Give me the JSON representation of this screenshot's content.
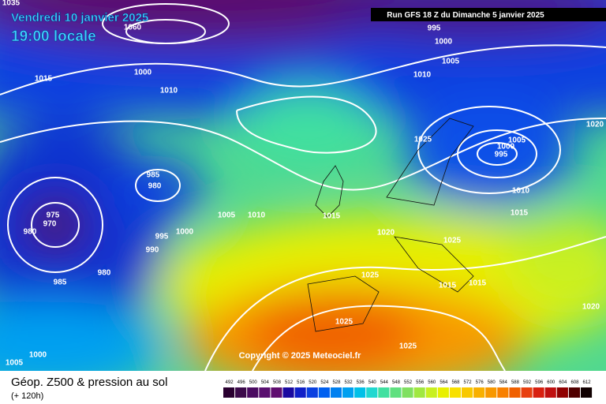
{
  "header": {
    "date": "Vendredi 10 janvier 2025",
    "time": "19:00 locale",
    "run": "Run GFS 18 Z du Dimanche 5 janvier 2025"
  },
  "copyright": "Copyright © 2025 Meteociel.fr",
  "legend": {
    "title": "Géop. Z500 & pression au sol",
    "subtitle": "(+ 120h)",
    "scale": [
      492,
      496,
      500,
      504,
      508,
      512,
      516,
      520,
      524,
      528,
      532,
      536,
      540,
      544,
      548,
      552,
      556,
      560,
      564,
      568,
      572,
      576,
      580,
      584,
      588,
      592,
      596,
      600,
      604,
      608,
      612
    ],
    "colors": [
      "#2a0030",
      "#3c0a4a",
      "#4a0a60",
      "#5a1070",
      "#600e70",
      "#1a0aa0",
      "#1020c8",
      "#0a40e0",
      "#0060f0",
      "#0080f0",
      "#00a0f0",
      "#00c0e8",
      "#20d8d0",
      "#40e0a0",
      "#60e080",
      "#80e060",
      "#a0e840",
      "#c8f020",
      "#e8f000",
      "#f8e000",
      "#f8c800",
      "#f8b000",
      "#f89800",
      "#f88000",
      "#f06000",
      "#e84010",
      "#d82010",
      "#c01010",
      "#900000",
      "#500000",
      "#100000"
    ]
  },
  "isobar_labels": [
    1035,
    1060,
    1015,
    1000,
    1010,
    995,
    1000,
    1005,
    1010,
    1025,
    1005,
    1000,
    995,
    1010,
    1015,
    1020,
    985,
    980,
    975,
    970,
    980,
    1005,
    1010,
    995,
    1000,
    990,
    985,
    980,
    1015,
    1020,
    1025,
    1025,
    1015,
    1015,
    1020,
    1025,
    1025,
    1000,
    1005
  ]
}
